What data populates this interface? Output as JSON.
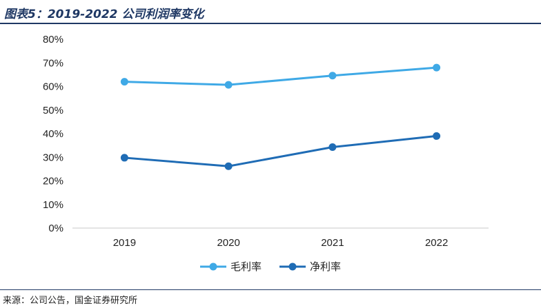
{
  "header": {
    "title": "图表5：2019-2022 公司利润率变化"
  },
  "footer": {
    "source": "来源：公司公告，国金证券研究所"
  },
  "chart_data": {
    "type": "line",
    "title": "",
    "xlabel": "",
    "ylabel": "",
    "categories": [
      "2019",
      "2020",
      "2021",
      "2022"
    ],
    "ylim": [
      0,
      80
    ],
    "ytick_values": [
      0,
      10,
      20,
      30,
      40,
      50,
      60,
      70,
      80
    ],
    "ytick_labels": [
      "0%",
      "10%",
      "20%",
      "30%",
      "40%",
      "50%",
      "60%",
      "70%",
      "80%"
    ],
    "grid": false,
    "legend_position": "bottom",
    "series": [
      {
        "name": "毛利率",
        "values": [
          62.0,
          60.7,
          64.6,
          68.0
        ],
        "color": "#3fa9e6"
      },
      {
        "name": "净利率",
        "values": [
          29.8,
          26.2,
          34.3,
          39.0
        ],
        "color": "#1f6cb5"
      }
    ]
  }
}
